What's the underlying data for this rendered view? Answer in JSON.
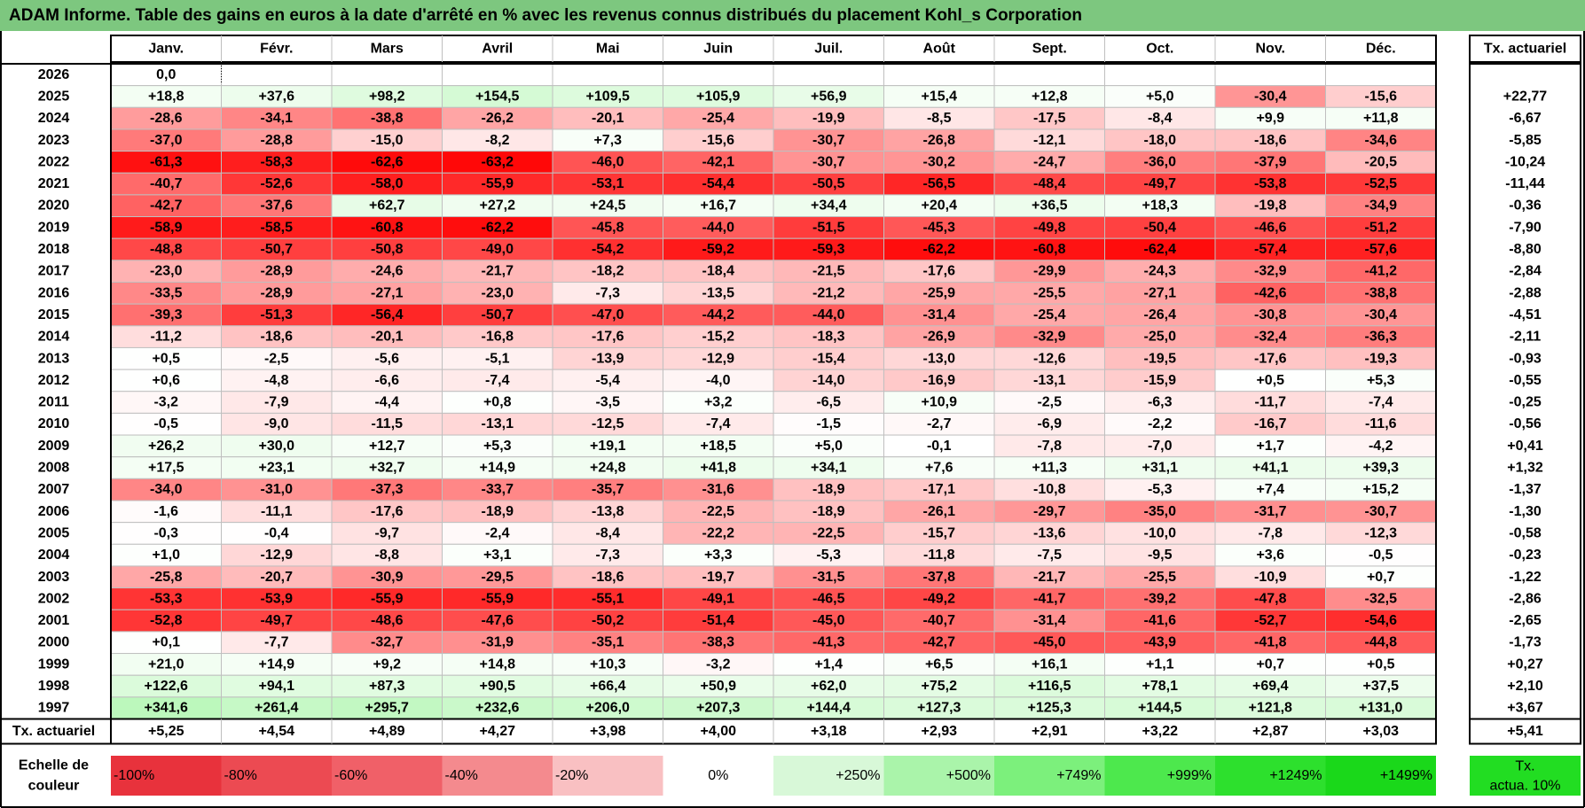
{
  "title": "ADAM Informe. Table des gains en euros à la date d'arrêté en % avec les revenus connus distribués du placement Kohl_s Corporation",
  "chart_data": {
    "type": "table",
    "months": [
      "Janv.",
      "Févr.",
      "Mars",
      "Avril",
      "Mai",
      "Juin",
      "Juil.",
      "Août",
      "Sept.",
      "Oct.",
      "Nov.",
      "Déc."
    ],
    "tx_header": "Tx. actuariel",
    "rows": [
      {
        "year": "2026",
        "values": [
          "0,0",
          "",
          "",
          "",
          "",
          "",
          "",
          "",
          "",
          "",
          "",
          ""
        ],
        "tx": ""
      },
      {
        "year": "2025",
        "values": [
          "+18,8",
          "+37,6",
          "+98,2",
          "+154,5",
          "+109,5",
          "+105,9",
          "+56,9",
          "+15,4",
          "+12,8",
          "+5,0",
          "-30,4",
          "-15,6"
        ],
        "tx": "+22,77"
      },
      {
        "year": "2024",
        "values": [
          "-28,6",
          "-34,1",
          "-38,8",
          "-26,2",
          "-20,1",
          "-25,4",
          "-19,9",
          "-8,5",
          "-17,5",
          "-8,4",
          "+9,9",
          "+11,8"
        ],
        "tx": "-6,67"
      },
      {
        "year": "2023",
        "values": [
          "-37,0",
          "-28,8",
          "-15,0",
          "-8,2",
          "+7,3",
          "-15,6",
          "-30,7",
          "-26,8",
          "-12,1",
          "-18,0",
          "-18,6",
          "-34,6"
        ],
        "tx": "-5,85"
      },
      {
        "year": "2022",
        "values": [
          "-61,3",
          "-58,3",
          "-62,6",
          "-63,2",
          "-46,0",
          "-42,1",
          "-30,7",
          "-30,2",
          "-24,7",
          "-36,0",
          "-37,9",
          "-20,5"
        ],
        "tx": "-10,24"
      },
      {
        "year": "2021",
        "values": [
          "-40,7",
          "-52,6",
          "-58,0",
          "-55,9",
          "-53,1",
          "-54,4",
          "-50,5",
          "-56,5",
          "-48,4",
          "-49,7",
          "-53,8",
          "-52,5"
        ],
        "tx": "-11,44"
      },
      {
        "year": "2020",
        "values": [
          "-42,7",
          "-37,6",
          "+62,7",
          "+27,2",
          "+24,5",
          "+16,7",
          "+34,4",
          "+20,4",
          "+36,5",
          "+18,3",
          "-19,8",
          "-34,9"
        ],
        "tx": "-0,36"
      },
      {
        "year": "2019",
        "values": [
          "-58,9",
          "-58,5",
          "-60,8",
          "-62,2",
          "-45,8",
          "-44,0",
          "-51,5",
          "-45,3",
          "-49,8",
          "-50,4",
          "-46,6",
          "-51,2"
        ],
        "tx": "-7,90"
      },
      {
        "year": "2018",
        "values": [
          "-48,8",
          "-50,7",
          "-50,8",
          "-49,0",
          "-54,2",
          "-59,2",
          "-59,3",
          "-62,2",
          "-60,8",
          "-62,4",
          "-57,4",
          "-57,6"
        ],
        "tx": "-8,80"
      },
      {
        "year": "2017",
        "values": [
          "-23,0",
          "-28,9",
          "-24,6",
          "-21,7",
          "-18,2",
          "-18,4",
          "-21,5",
          "-17,6",
          "-29,9",
          "-24,3",
          "-32,9",
          "-41,2"
        ],
        "tx": "-2,84"
      },
      {
        "year": "2016",
        "values": [
          "-33,5",
          "-28,9",
          "-27,1",
          "-23,0",
          "-7,3",
          "-13,5",
          "-21,2",
          "-25,9",
          "-25,5",
          "-27,1",
          "-42,6",
          "-38,8"
        ],
        "tx": "-2,88"
      },
      {
        "year": "2015",
        "values": [
          "-39,3",
          "-51,3",
          "-56,4",
          "-50,7",
          "-47,0",
          "-44,2",
          "-44,0",
          "-31,4",
          "-25,4",
          "-26,4",
          "-30,8",
          "-30,4"
        ],
        "tx": "-4,51"
      },
      {
        "year": "2014",
        "values": [
          "-11,2",
          "-18,6",
          "-20,1",
          "-16,8",
          "-17,6",
          "-15,2",
          "-18,3",
          "-26,9",
          "-32,9",
          "-25,0",
          "-32,4",
          "-36,3"
        ],
        "tx": "-2,11"
      },
      {
        "year": "2013",
        "values": [
          "+0,5",
          "-2,5",
          "-5,6",
          "-5,1",
          "-13,9",
          "-12,9",
          "-15,4",
          "-13,0",
          "-12,6",
          "-19,5",
          "-17,6",
          "-19,3"
        ],
        "tx": "-0,93"
      },
      {
        "year": "2012",
        "values": [
          "+0,6",
          "-4,8",
          "-6,6",
          "-7,4",
          "-5,4",
          "-4,0",
          "-14,0",
          "-16,9",
          "-13,1",
          "-15,9",
          "+0,5",
          "+5,3"
        ],
        "tx": "-0,55"
      },
      {
        "year": "2011",
        "values": [
          "-3,2",
          "-7,9",
          "-4,4",
          "+0,8",
          "-3,5",
          "+3,2",
          "-6,5",
          "+10,9",
          "-2,5",
          "-6,3",
          "-11,7",
          "-7,4"
        ],
        "tx": "-0,25"
      },
      {
        "year": "2010",
        "values": [
          "-0,5",
          "-9,0",
          "-11,5",
          "-13,1",
          "-12,5",
          "-7,4",
          "-1,5",
          "-2,7",
          "-6,9",
          "-2,2",
          "-16,7",
          "-11,6"
        ],
        "tx": "-0,56"
      },
      {
        "year": "2009",
        "values": [
          "+26,2",
          "+30,0",
          "+12,7",
          "+5,3",
          "+19,1",
          "+18,5",
          "+5,0",
          "-0,1",
          "-7,8",
          "-7,0",
          "+1,7",
          "-4,2"
        ],
        "tx": "+0,41"
      },
      {
        "year": "2008",
        "values": [
          "+17,5",
          "+23,1",
          "+32,7",
          "+14,9",
          "+24,8",
          "+41,8",
          "+34,1",
          "+7,6",
          "+11,3",
          "+31,1",
          "+41,1",
          "+39,3"
        ],
        "tx": "+1,32"
      },
      {
        "year": "2007",
        "values": [
          "-34,0",
          "-31,0",
          "-37,3",
          "-33,7",
          "-35,7",
          "-31,6",
          "-18,9",
          "-17,1",
          "-10,8",
          "-5,3",
          "+7,4",
          "+15,2"
        ],
        "tx": "-1,37"
      },
      {
        "year": "2006",
        "values": [
          "-1,6",
          "-11,1",
          "-17,6",
          "-18,9",
          "-13,8",
          "-22,5",
          "-18,9",
          "-26,1",
          "-29,7",
          "-35,0",
          "-31,7",
          "-30,7"
        ],
        "tx": "-1,30"
      },
      {
        "year": "2005",
        "values": [
          "-0,3",
          "-0,4",
          "-9,7",
          "-2,4",
          "-8,4",
          "-22,2",
          "-22,5",
          "-15,7",
          "-13,6",
          "-10,0",
          "-7,8",
          "-12,3"
        ],
        "tx": "-0,58"
      },
      {
        "year": "2004",
        "values": [
          "+1,0",
          "-12,9",
          "-8,8",
          "+3,1",
          "-7,3",
          "+3,3",
          "-5,3",
          "-11,8",
          "-7,5",
          "-9,5",
          "+3,6",
          "-0,5"
        ],
        "tx": "-0,23"
      },
      {
        "year": "2003",
        "values": [
          "-25,8",
          "-20,7",
          "-30,9",
          "-29,5",
          "-18,6",
          "-19,7",
          "-31,5",
          "-37,8",
          "-21,7",
          "-25,5",
          "-10,9",
          "+0,7"
        ],
        "tx": "-1,22"
      },
      {
        "year": "2002",
        "values": [
          "-53,3",
          "-53,9",
          "-55,9",
          "-55,9",
          "-55,1",
          "-49,1",
          "-46,5",
          "-49,2",
          "-41,7",
          "-39,2",
          "-47,8",
          "-32,5"
        ],
        "tx": "-2,86"
      },
      {
        "year": "2001",
        "values": [
          "-52,8",
          "-49,7",
          "-48,6",
          "-47,6",
          "-50,2",
          "-51,4",
          "-45,0",
          "-40,7",
          "-31,4",
          "-41,6",
          "-52,7",
          "-54,6"
        ],
        "tx": "-2,65"
      },
      {
        "year": "2000",
        "values": [
          "+0,1",
          "-7,7",
          "-32,7",
          "-31,9",
          "-35,1",
          "-38,3",
          "-41,3",
          "-42,7",
          "-45,0",
          "-43,9",
          "-41,8",
          "-44,8"
        ],
        "tx": "-1,73"
      },
      {
        "year": "1999",
        "values": [
          "+21,0",
          "+14,9",
          "+9,2",
          "+14,8",
          "+10,3",
          "-3,2",
          "+1,4",
          "+6,5",
          "+16,1",
          "+1,1",
          "+0,7",
          "+0,5"
        ],
        "tx": "+0,27"
      },
      {
        "year": "1998",
        "values": [
          "+122,6",
          "+94,1",
          "+87,3",
          "+90,5",
          "+66,4",
          "+50,9",
          "+62,0",
          "+75,2",
          "+116,5",
          "+78,1",
          "+69,4",
          "+37,5"
        ],
        "tx": "+2,10"
      },
      {
        "year": "1997",
        "values": [
          "+341,6",
          "+261,4",
          "+295,7",
          "+232,6",
          "+206,0",
          "+207,3",
          "+144,4",
          "+127,3",
          "+125,3",
          "+144,5",
          "+121,8",
          "+131,0"
        ],
        "tx": "+3,67"
      }
    ],
    "footer": {
      "label": "Tx. actuariel",
      "values": [
        "+5,25",
        "+4,54",
        "+4,89",
        "+4,27",
        "+3,98",
        "+4,00",
        "+3,18",
        "+2,93",
        "+2,91",
        "+3,22",
        "+2,87",
        "+3,03"
      ],
      "tx": "+5,41"
    },
    "scale": {
      "label_line1": "Echelle de",
      "label_line2": "couleur",
      "items": [
        {
          "text": "-100%",
          "color": "#e8323c",
          "align": "left"
        },
        {
          "text": "-80%",
          "color": "#ec4a52",
          "align": "left"
        },
        {
          "text": "-60%",
          "color": "#f06068",
          "align": "left"
        },
        {
          "text": "-40%",
          "color": "#f48a8e",
          "align": "left"
        },
        {
          "text": "-20%",
          "color": "#f9c0c2",
          "align": "left"
        },
        {
          "text": "0%",
          "color": "#ffffff",
          "align": "center"
        },
        {
          "text": "+250%",
          "color": "#d8f8d8",
          "align": "right"
        },
        {
          "text": "+500%",
          "color": "#aaf4aa",
          "align": "right"
        },
        {
          "text": "+749%",
          "color": "#7cf07c",
          "align": "right"
        },
        {
          "text": "+999%",
          "color": "#4de84d",
          "align": "right"
        },
        {
          "text": "+1249%",
          "color": "#2de02d",
          "align": "right"
        },
        {
          "text": "+1499%",
          "color": "#1ad81a",
          "align": "right"
        }
      ],
      "tx_line1": "Tx.",
      "tx_line2": "actua. 10%",
      "tx_color": "#22dd22"
    },
    "colors": {
      "title_bg": "#7dc77f",
      "negative": "#ff0000",
      "positive": "#66ee66",
      "grid": "#bfbfbf"
    }
  }
}
